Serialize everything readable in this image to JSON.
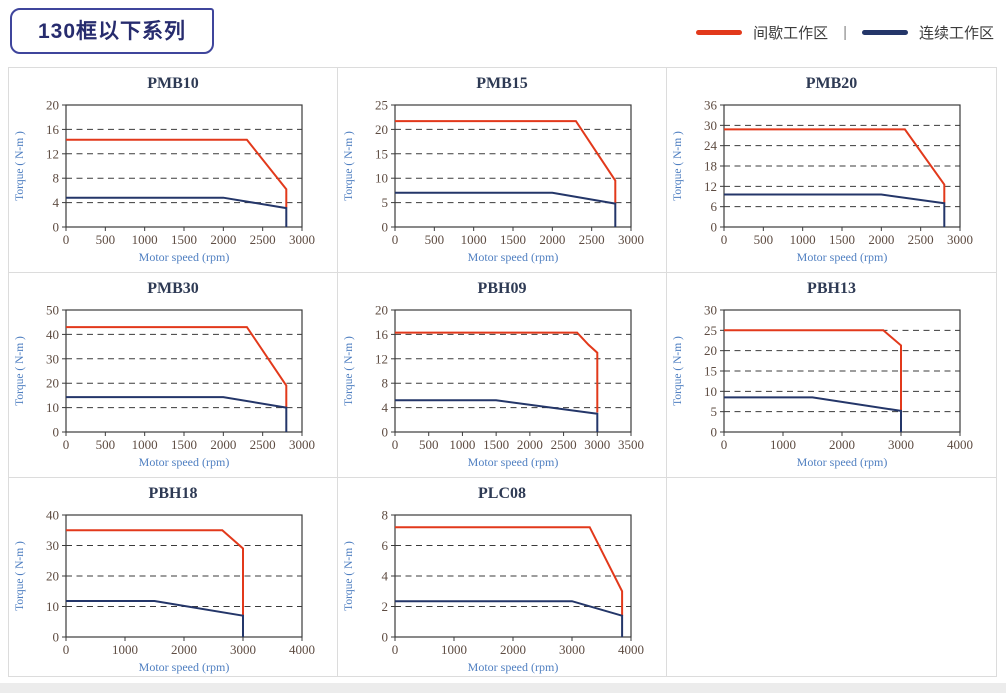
{
  "header": {
    "title": "130框以下系列",
    "legend": [
      {
        "label": "间歇工作区",
        "color": "#e2391b"
      },
      {
        "label": "连续工作区",
        "color": "#243669"
      }
    ],
    "legend_separator": "|"
  },
  "colors": {
    "red": "#e2391b",
    "navy": "#243669",
    "axis": "#3b3b3b",
    "grid": "#3b3b3b",
    "tick": "#5e4c42",
    "axislabel": "#4f7fc1",
    "title": "#2e3a54",
    "badge": "#272c6e",
    "panel_border": "#dcdcdc",
    "bottom_strip": "#ececec"
  },
  "chart_data": [
    {
      "type": "line",
      "title": "PMB10",
      "xlabel": "Motor speed (rpm)",
      "ylabel": "Torque ( N-m )",
      "xlim": [
        0,
        3000
      ],
      "xstep": 500,
      "ylim": [
        0,
        20
      ],
      "ystep": 4,
      "grid": "dashed-horizontal",
      "legend_position": "none",
      "series": [
        {
          "name": "间歇工作区",
          "color": "#e2391b",
          "points": [
            [
              0,
              14.3
            ],
            [
              2300,
              14.3
            ],
            [
              2800,
              6.2
            ],
            [
              2800,
              3.2
            ]
          ]
        },
        {
          "name": "连续工作区",
          "color": "#243669",
          "points": [
            [
              0,
              4.8
            ],
            [
              2000,
              4.8
            ],
            [
              2800,
              3.1
            ],
            [
              2800,
              0
            ]
          ]
        }
      ]
    },
    {
      "type": "line",
      "title": "PMB15",
      "xlabel": "Motor speed (rpm)",
      "ylabel": "Torque ( N-m )",
      "xlim": [
        0,
        3000
      ],
      "xstep": 500,
      "ylim": [
        0,
        25
      ],
      "ystep": 5,
      "grid": "dashed-horizontal",
      "legend_position": "none",
      "series": [
        {
          "name": "间歇工作区",
          "color": "#e2391b",
          "points": [
            [
              0,
              21.7
            ],
            [
              2300,
              21.7
            ],
            [
              2800,
              9.5
            ],
            [
              2800,
              4.8
            ]
          ]
        },
        {
          "name": "连续工作区",
          "color": "#243669",
          "points": [
            [
              0,
              7
            ],
            [
              2000,
              7
            ],
            [
              2800,
              4.8
            ],
            [
              2800,
              0
            ]
          ]
        }
      ]
    },
    {
      "type": "line",
      "title": "PMB20",
      "xlabel": "Motor speed (rpm)",
      "ylabel": "Torque ( N-m )",
      "xlim": [
        0,
        3000
      ],
      "xstep": 500,
      "ylim": [
        0,
        36
      ],
      "ystep": 6,
      "grid": "dashed-horizontal",
      "legend_position": "none",
      "series": [
        {
          "name": "间歇工作区",
          "color": "#e2391b",
          "points": [
            [
              0,
              28.8
            ],
            [
              2300,
              28.8
            ],
            [
              2800,
              12.5
            ],
            [
              2800,
              7
            ]
          ]
        },
        {
          "name": "连续工作区",
          "color": "#243669",
          "points": [
            [
              0,
              9.6
            ],
            [
              2000,
              9.6
            ],
            [
              2800,
              7
            ],
            [
              2800,
              0
            ]
          ]
        }
      ]
    },
    {
      "type": "line",
      "title": "PMB30",
      "xlabel": "Motor speed (rpm)",
      "ylabel": "Torque ( N-m )",
      "xlim": [
        0,
        3000
      ],
      "xstep": 500,
      "ylim": [
        0,
        50
      ],
      "ystep": 10,
      "grid": "dashed-horizontal",
      "legend_position": "none",
      "series": [
        {
          "name": "间歇工作区",
          "color": "#e2391b",
          "points": [
            [
              0,
              43
            ],
            [
              2300,
              43
            ],
            [
              2800,
              19
            ],
            [
              2800,
              10
            ]
          ]
        },
        {
          "name": "连续工作区",
          "color": "#243669",
          "points": [
            [
              0,
              14.3
            ],
            [
              2000,
              14.3
            ],
            [
              2800,
              10
            ],
            [
              2800,
              0
            ]
          ]
        }
      ]
    },
    {
      "type": "line",
      "title": "PBH09",
      "xlabel": "Motor speed (rpm)",
      "ylabel": "Torque ( N-m )",
      "xlim": [
        0,
        3500
      ],
      "xstep": 500,
      "ylim": [
        0,
        20
      ],
      "ystep": 4,
      "grid": "dashed-horizontal",
      "legend_position": "none",
      "series": [
        {
          "name": "间歇工作区",
          "color": "#e2391b",
          "points": [
            [
              0,
              16.3
            ],
            [
              2700,
              16.3
            ],
            [
              2870,
              14.3
            ],
            [
              3000,
              13
            ],
            [
              3000,
              3.2
            ]
          ]
        },
        {
          "name": "连续工作区",
          "color": "#243669",
          "points": [
            [
              0,
              5.2
            ],
            [
              1500,
              5.2
            ],
            [
              3000,
              3
            ],
            [
              3000,
              0
            ]
          ]
        }
      ]
    },
    {
      "type": "line",
      "title": "PBH13",
      "xlabel": "Motor speed (rpm)",
      "ylabel": "Torque ( N-m )",
      "xlim": [
        0,
        4000
      ],
      "xstep": 1000,
      "ylim": [
        0,
        30
      ],
      "ystep": 5,
      "grid": "dashed-horizontal",
      "legend_position": "none",
      "series": [
        {
          "name": "间歇工作区",
          "color": "#e2391b",
          "points": [
            [
              0,
              25
            ],
            [
              2700,
              25
            ],
            [
              3000,
              21.3
            ],
            [
              3000,
              5.2
            ]
          ]
        },
        {
          "name": "连续工作区",
          "color": "#243669",
          "points": [
            [
              0,
              8.5
            ],
            [
              1500,
              8.5
            ],
            [
              3000,
              5.2
            ],
            [
              3000,
              0
            ]
          ]
        }
      ]
    },
    {
      "type": "line",
      "title": "PBH18",
      "xlabel": "Motor speed (rpm)",
      "ylabel": "Torque ( N-m )",
      "xlim": [
        0,
        4000
      ],
      "xstep": 1000,
      "ylim": [
        0,
        40
      ],
      "ystep": 10,
      "grid": "dashed-horizontal",
      "legend_position": "none",
      "series": [
        {
          "name": "间歇工作区",
          "color": "#e2391b",
          "points": [
            [
              0,
              35
            ],
            [
              2650,
              35
            ],
            [
              3000,
              29
            ],
            [
              3000,
              7
            ]
          ]
        },
        {
          "name": "连续工作区",
          "color": "#243669",
          "points": [
            [
              0,
              11.8
            ],
            [
              1500,
              11.8
            ],
            [
              3000,
              7
            ],
            [
              3000,
              0
            ]
          ]
        }
      ]
    },
    {
      "type": "line",
      "title": "PLC08",
      "xlabel": "Motor speed (rpm)",
      "ylabel": "Torque ( N-m )",
      "xlim": [
        0,
        4000
      ],
      "xstep": 1000,
      "ylim": [
        0,
        8
      ],
      "ystep": 2,
      "grid": "dashed-horizontal",
      "legend_position": "none",
      "series": [
        {
          "name": "间歇工作区",
          "color": "#e2391b",
          "points": [
            [
              0,
              7.2
            ],
            [
              3300,
              7.2
            ],
            [
              3850,
              3
            ],
            [
              3850,
              1.4
            ]
          ]
        },
        {
          "name": "连续工作区",
          "color": "#243669",
          "points": [
            [
              0,
              2.35
            ],
            [
              3000,
              2.35
            ],
            [
              3850,
              1.4
            ],
            [
              3850,
              0
            ]
          ]
        }
      ]
    }
  ]
}
